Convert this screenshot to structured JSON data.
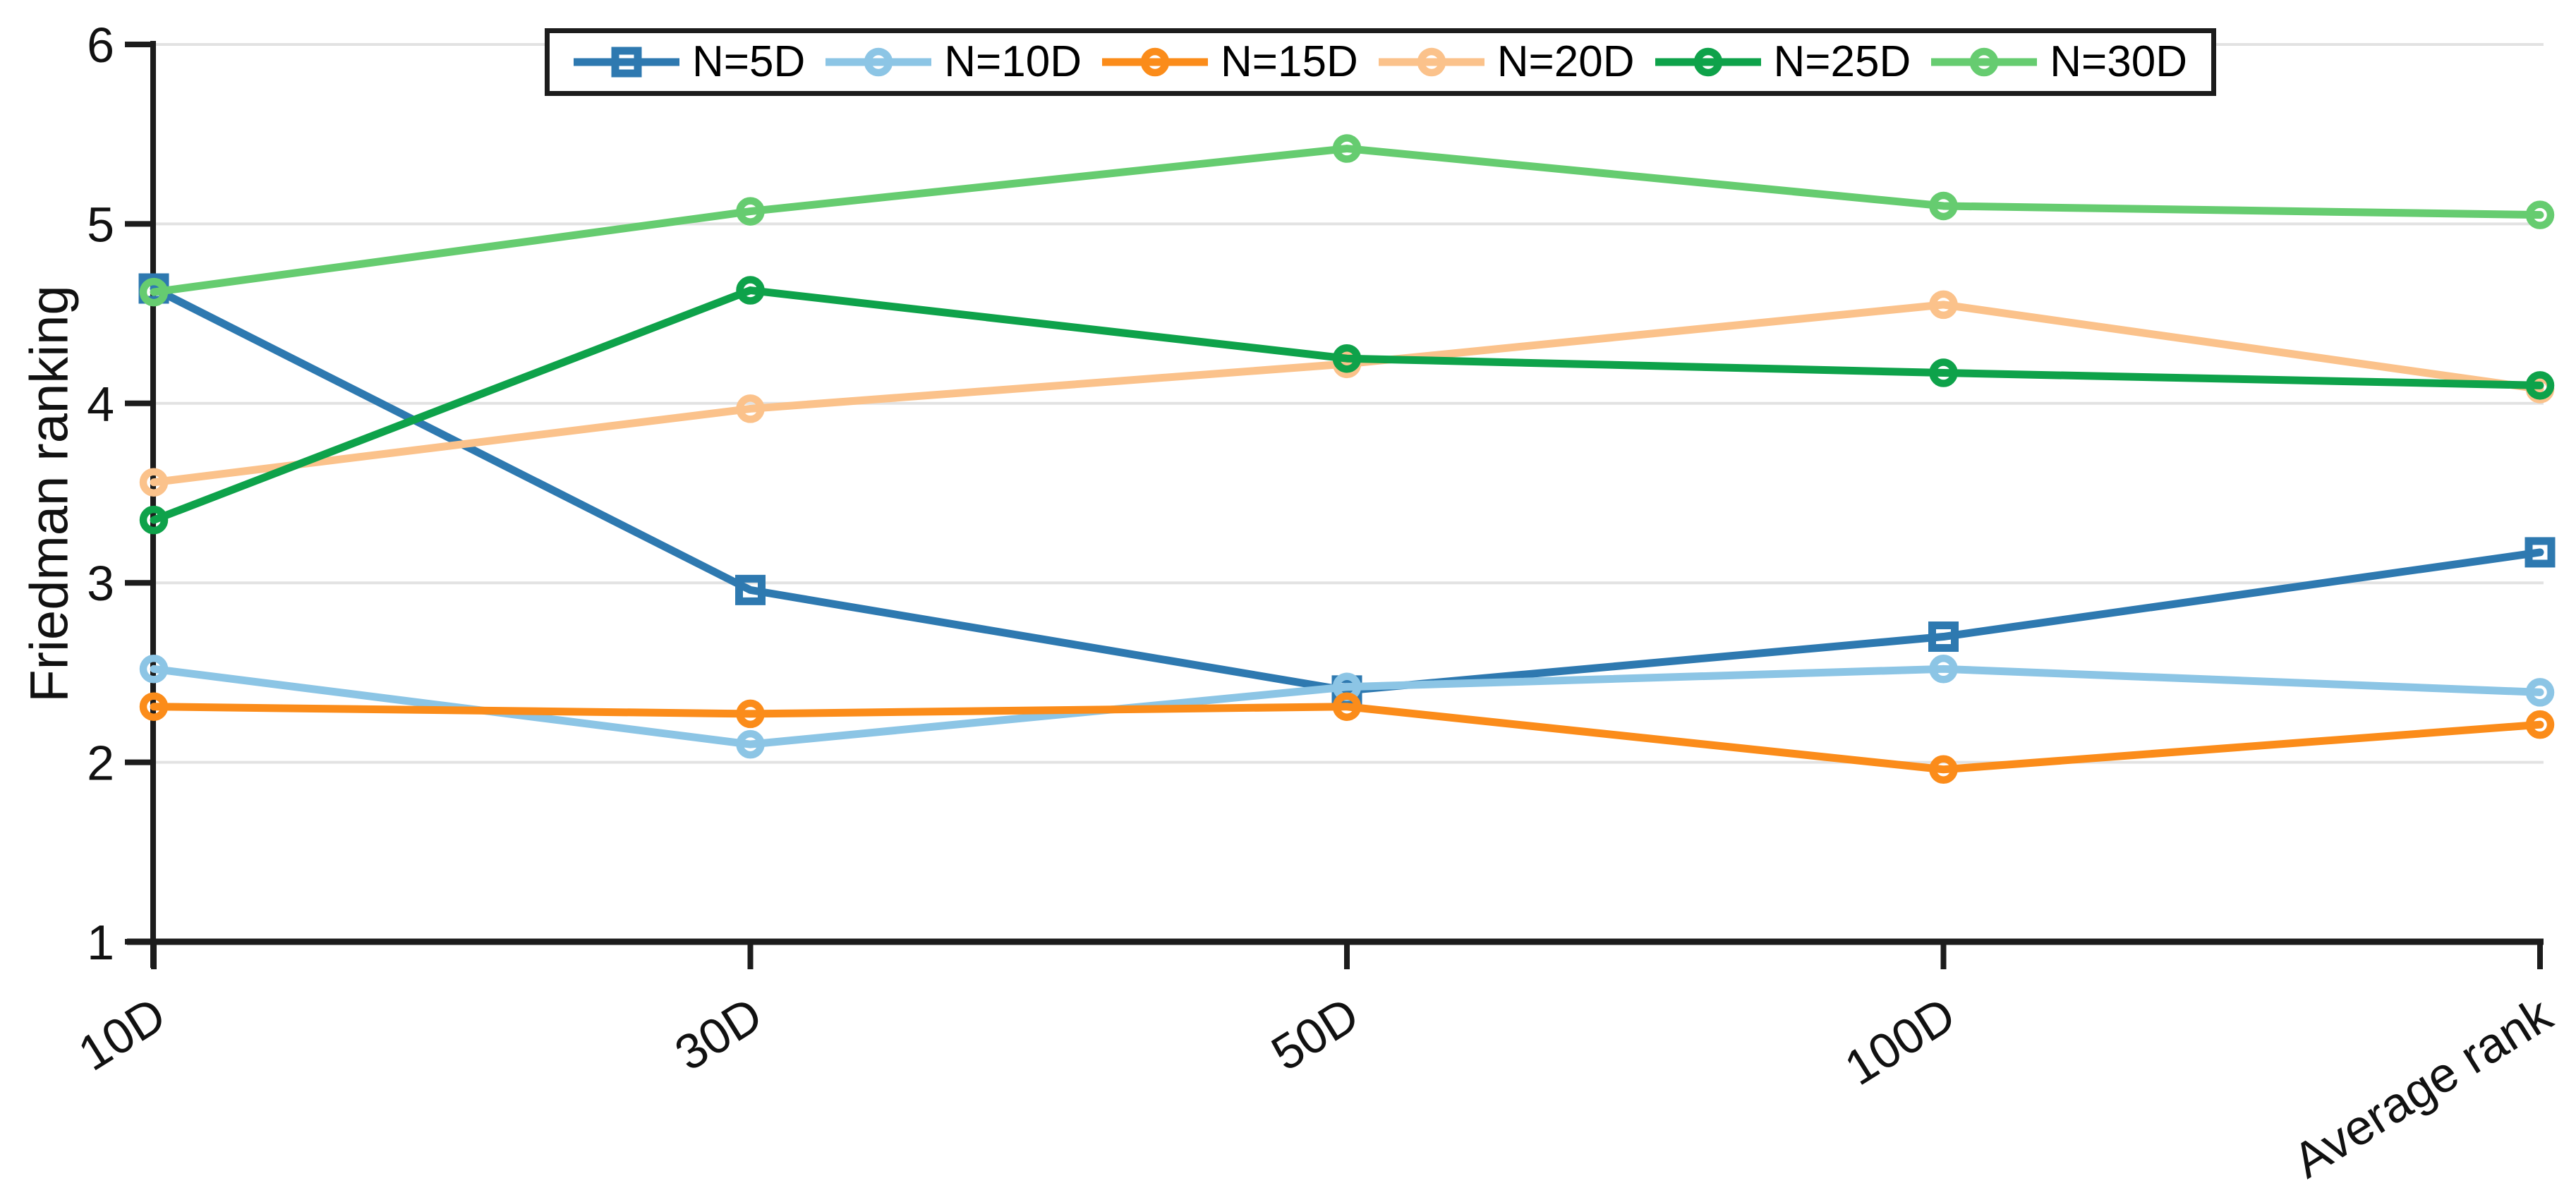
{
  "chart_data": {
    "type": "line",
    "title": "",
    "xlabel": "",
    "ylabel": "Friedman ranking",
    "categories": [
      "10D",
      "30D",
      "50D",
      "100D",
      "Average rank"
    ],
    "yticks": [
      1,
      2,
      3,
      4,
      5,
      6
    ],
    "ylim": [
      1,
      6
    ],
    "grid": true,
    "legend_position": "top-center",
    "series": [
      {
        "name": "N=5D",
        "color": "#2e79b0",
        "marker": "square",
        "values": [
          4.64,
          2.96,
          2.4,
          2.7,
          3.17
        ]
      },
      {
        "name": "N=10D",
        "color": "#8cc5e5",
        "marker": "circle",
        "values": [
          2.52,
          2.1,
          2.42,
          2.52,
          2.39
        ]
      },
      {
        "name": "N=15D",
        "color": "#fb8c1a",
        "marker": "circle",
        "values": [
          2.31,
          2.27,
          2.31,
          1.96,
          2.21
        ]
      },
      {
        "name": "N=20D",
        "color": "#fbc28b",
        "marker": "circle",
        "values": [
          3.56,
          3.97,
          4.22,
          4.55,
          4.08
        ]
      },
      {
        "name": "N=25D",
        "color": "#0ea24a",
        "marker": "circle",
        "values": [
          3.35,
          4.63,
          4.25,
          4.17,
          4.1
        ]
      },
      {
        "name": "N=30D",
        "color": "#66cc70",
        "marker": "circle",
        "values": [
          4.62,
          5.07,
          5.42,
          5.1,
          5.05
        ]
      }
    ]
  },
  "styles": {
    "background": "#ffffff",
    "axis_color": "#1c1c1c",
    "grid_color": "#e2e2e2",
    "text_color": "#111111"
  }
}
